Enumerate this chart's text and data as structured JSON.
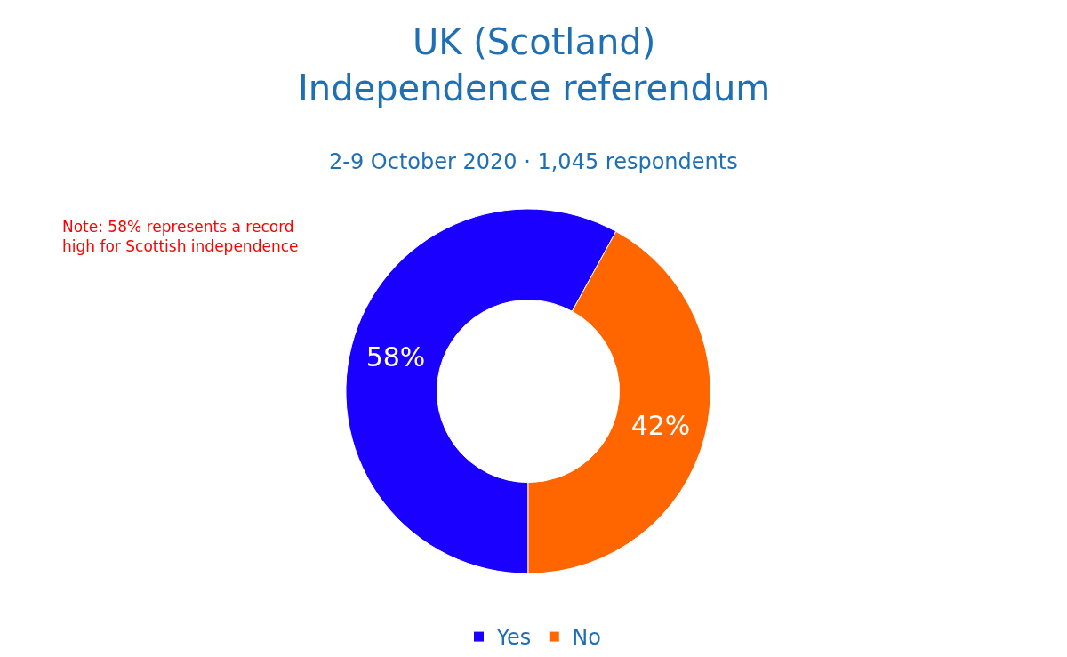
{
  "chart_data": {
    "type": "donut",
    "title": "UK (Scotland)\nIndependence referendum",
    "subtitle": "2-9 October 2020 · 1,045 respondents",
    "categories": [
      "Yes",
      "No"
    ],
    "values": [
      58,
      42
    ],
    "colors": [
      "#1a00ff",
      "#ff6600"
    ],
    "value_labels": [
      "58%",
      "42%"
    ],
    "legend": "bottom",
    "annotations": [
      "Note: 58% represents a record\nhigh for Scottish independence"
    ]
  }
}
